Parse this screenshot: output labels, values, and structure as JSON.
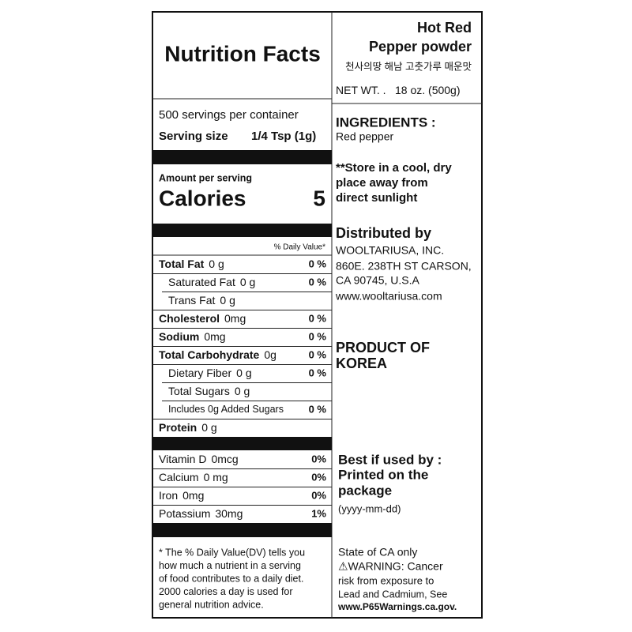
{
  "header": {
    "title": "Nutrition Facts"
  },
  "serving": {
    "servings": "500 servings per container",
    "size_label": "Serving size",
    "size_value": "1/4 Tsp (1g)"
  },
  "calories": {
    "amount_label": "Amount per serving",
    "label": "Calories",
    "value": 5
  },
  "daily_value_header": "% Daily Value*",
  "nutrients": [
    {
      "name": "Total Fat",
      "amount": "0 g",
      "dv": "0 %"
    },
    {
      "name": "Saturated Fat",
      "amount": "0 g",
      "dv": "0 %"
    },
    {
      "name": "Trans Fat",
      "amount": "0 g"
    },
    {
      "name": "Cholesterol",
      "amount": "0mg",
      "dv": "0 %"
    },
    {
      "name": "Sodium",
      "amount": "0mg",
      "dv": "0 %"
    },
    {
      "name": "Total Carbohydrate",
      "amount": "0g",
      "dv": "0 %"
    },
    {
      "name": "Dietary Fiber",
      "amount": "0 g",
      "dv": "0 %"
    },
    {
      "name": "Total Sugars",
      "amount": "0 g"
    },
    {
      "name": "Includes 0g Added Sugars",
      "dv": "0 %"
    },
    {
      "name": "Protein",
      "amount": "0 g"
    }
  ],
  "vitamins": [
    {
      "name": "Vitamin D",
      "amount": "0mcg",
      "dv": "0%"
    },
    {
      "name": "Calcium",
      "amount": "0 mg",
      "dv": "0%"
    },
    {
      "name": "Iron",
      "amount": "0mg",
      "dv": "0%"
    },
    {
      "name": "Potassium",
      "amount": "30mg",
      "dv": "1%"
    }
  ],
  "footnote": [
    "* The % Daily Value(DV) tells you",
    "how much a nutrient in a serving",
    "of food contributes to a daily diet.",
    "2000 calories a day is used for",
    "general nutrition advice."
  ],
  "product": {
    "name_lines": [
      "Hot Red",
      "Pepper powder"
    ],
    "korean_name": "천사의땅 해남 고춧가루 매운맛",
    "net_wt_label": "NET WT. .",
    "net_wt_value": "18 oz. (500g)"
  },
  "ingredients": {
    "title": "INGREDIENTS :",
    "text": "Red pepper"
  },
  "storage": [
    "**Store in a cool, dry",
    "place away from",
    "direct sunlight"
  ],
  "distributor": {
    "title": "Distributed by",
    "lines": [
      "WOOLTARIUSA, INC.",
      "860E. 238TH ST CARSON,",
      "CA 90745, U.S.A",
      "www.wooltariusa.com"
    ]
  },
  "origin": [
    "PRODUCT OF",
    "KOREA"
  ],
  "best_by": {
    "lines": [
      "Best if used by :",
      "Printed on the",
      "package"
    ],
    "format": "(yyyy-mm-dd)"
  },
  "warning": [
    "State of CA only",
    "⚠WARNING: Cancer",
    "risk from exposure to",
    "Lead and Cadmium, See",
    "www.P65Warnings.ca.gov."
  ]
}
